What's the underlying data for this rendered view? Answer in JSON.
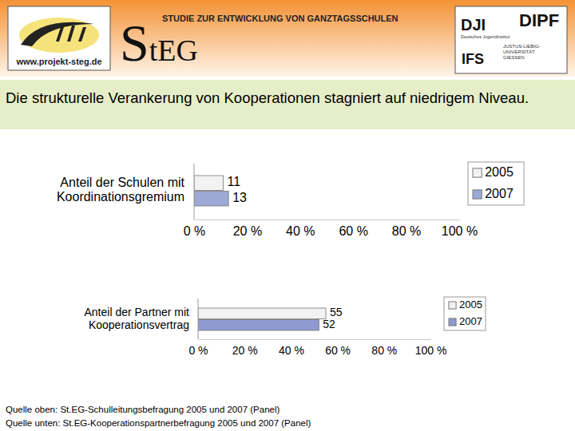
{
  "header": {
    "subtitle": "STUDIE ZUR ENTWICKLUNG VON GANZTAGSSCHULEN",
    "logo": "StEG",
    "url": "www.projekt-steg.de",
    "partners": {
      "dji": "DJI",
      "dji_name": "Deutsches Jugendinstitut",
      "dipf": "DIPF",
      "ifs": "IFS",
      "university": [
        "JUSTUS-LIEBIG-",
        "UNIVERSITÄT",
        "GIESSEN"
      ]
    }
  },
  "headline": "Die strukturelle Verankerung von Kooperationen stagniert auf niedrigem Niveau.",
  "chart_data": [
    {
      "type": "bar",
      "orientation": "horizontal",
      "categories": [
        "Anteil der Schulen mit\nKoordinationsgremium"
      ],
      "series": [
        {
          "name": "2005",
          "color": "#f2f2f2",
          "values": [
            11
          ]
        },
        {
          "name": "2007",
          "color": "#9ea8d6",
          "values": [
            13
          ]
        }
      ],
      "xlim": [
        0,
        100
      ],
      "xticks": [
        {
          "value": 0,
          "label": "0 %"
        },
        {
          "value": 20,
          "label": "20 %"
        },
        {
          "value": 40,
          "label": "40 %"
        },
        {
          "value": 60,
          "label": "60 %"
        },
        {
          "value": 80,
          "label": "80 %"
        },
        {
          "value": 100,
          "label": "100 %"
        }
      ],
      "data_labels": true,
      "legend": "right"
    },
    {
      "type": "bar",
      "orientation": "horizontal",
      "categories": [
        "Anteil der Partner mit\nKooperationsvertrag"
      ],
      "series": [
        {
          "name": "2005",
          "color": "#f2f2f2",
          "values": [
            55
          ]
        },
        {
          "name": "2007",
          "color": "#8f9bd0",
          "values": [
            52
          ]
        }
      ],
      "xlim": [
        0,
        100
      ],
      "xticks": [
        {
          "value": 0,
          "label": "0 %"
        },
        {
          "value": 20,
          "label": "20 %"
        },
        {
          "value": 40,
          "label": "40 %"
        },
        {
          "value": 60,
          "label": "60 %"
        },
        {
          "value": 80,
          "label": "80 %"
        },
        {
          "value": 100,
          "label": "100 %"
        }
      ],
      "data_labels": true,
      "legend": "right"
    }
  ],
  "sources": [
    "Quelle oben: St.EG-Schulleitungsbefragung 2005 und 2007 (Panel)",
    "Quelle unten: St.EG-Kooperationspartnerbefragung 2005 und 2007 (Panel)"
  ]
}
